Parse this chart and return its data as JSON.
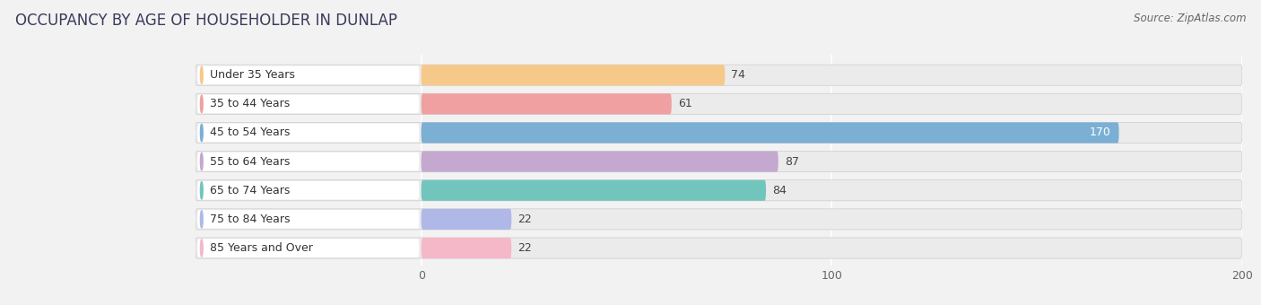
{
  "title": "OCCUPANCY BY AGE OF HOUSEHOLDER IN DUNLAP",
  "source": "Source: ZipAtlas.com",
  "categories": [
    "Under 35 Years",
    "35 to 44 Years",
    "45 to 54 Years",
    "55 to 64 Years",
    "65 to 74 Years",
    "75 to 84 Years",
    "85 Years and Over"
  ],
  "values": [
    74,
    61,
    170,
    87,
    84,
    22,
    22
  ],
  "bar_colors": [
    "#f5c98a",
    "#f0a0a0",
    "#7bafd4",
    "#c4a8d0",
    "#72c5bc",
    "#b0b8e8",
    "#f5b8c8"
  ],
  "xlim_min": 0,
  "xlim_max": 200,
  "xticks": [
    0,
    100,
    200
  ],
  "background_color": "#f2f2f2",
  "bar_bg_color": "#e4e4e4",
  "row_bg_color": "#ffffff",
  "title_fontsize": 12,
  "label_fontsize": 9,
  "value_fontsize": 9,
  "source_fontsize": 8.5,
  "bar_height": 0.72
}
